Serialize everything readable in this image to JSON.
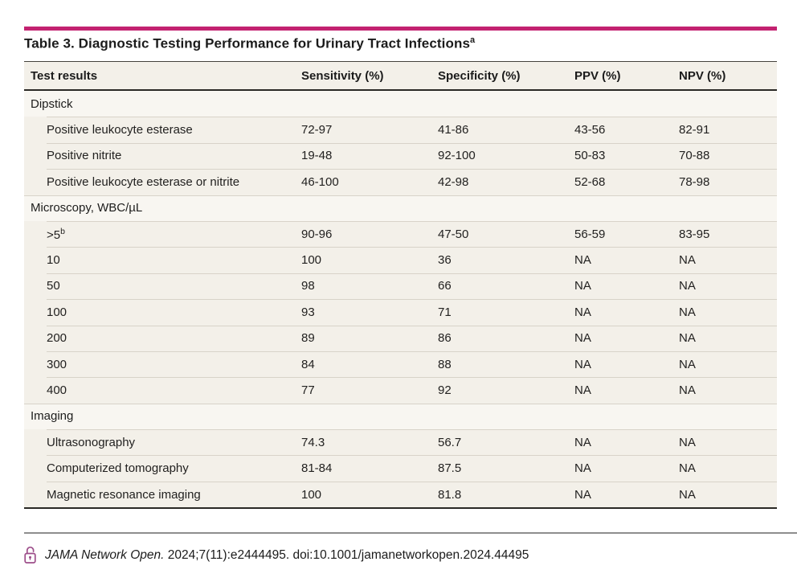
{
  "accent_color": "#c32270",
  "lock_color": "#9d4e8a",
  "title": {
    "text": "Table 3. Diagnostic Testing Performance for Urinary Tract Infections",
    "superscript": "a"
  },
  "table": {
    "columns": [
      "Test results",
      "Sensitivity (%)",
      "Specificity (%)",
      "PPV (%)",
      "NPV (%)"
    ],
    "sections": [
      {
        "label": "Dipstick",
        "rows": [
          {
            "label": "Positive leukocyte esterase",
            "sensitivity": "72-97",
            "specificity": "41-86",
            "ppv": "43-56",
            "npv": "82-91"
          },
          {
            "label": "Positive nitrite",
            "sensitivity": "19-48",
            "specificity": "92-100",
            "ppv": "50-83",
            "npv": "70-88"
          },
          {
            "label": "Positive leukocyte esterase or nitrite",
            "sensitivity": "46-100",
            "specificity": "42-98",
            "ppv": "52-68",
            "npv": "78-98"
          }
        ]
      },
      {
        "label": "Microscopy, WBC/µL",
        "rows": [
          {
            "label": ">5",
            "label_superscript": "b",
            "sensitivity": "90-96",
            "specificity": "47-50",
            "ppv": "56-59",
            "npv": "83-95"
          },
          {
            "label": "10",
            "sensitivity": "100",
            "specificity": "36",
            "ppv": "NA",
            "npv": "NA"
          },
          {
            "label": "50",
            "sensitivity": "98",
            "specificity": "66",
            "ppv": "NA",
            "npv": "NA"
          },
          {
            "label": "100",
            "sensitivity": "93",
            "specificity": "71",
            "ppv": "NA",
            "npv": "NA"
          },
          {
            "label": "200",
            "sensitivity": "89",
            "specificity": "86",
            "ppv": "NA",
            "npv": "NA"
          },
          {
            "label": "300",
            "sensitivity": "84",
            "specificity": "88",
            "ppv": "NA",
            "npv": "NA"
          },
          {
            "label": "400",
            "sensitivity": "77",
            "specificity": "92",
            "ppv": "NA",
            "npv": "NA"
          }
        ]
      },
      {
        "label": "Imaging",
        "rows": [
          {
            "label": "Ultrasonography",
            "sensitivity": "74.3",
            "specificity": "56.7",
            "ppv": "NA",
            "npv": "NA"
          },
          {
            "label": "Computerized tomography",
            "sensitivity": "81-84",
            "specificity": "87.5",
            "ppv": "NA",
            "npv": "NA"
          },
          {
            "label": "Magnetic resonance imaging",
            "sensitivity": "100",
            "specificity": "81.8",
            "ppv": "NA",
            "npv": "NA"
          }
        ]
      }
    ]
  },
  "footer": {
    "journal": "JAMA Network Open.",
    "citation": "2024;7(11):e2444495. doi:10.1001/jamanetworkopen.2024.44495",
    "icon": "open-access-lock-icon"
  }
}
